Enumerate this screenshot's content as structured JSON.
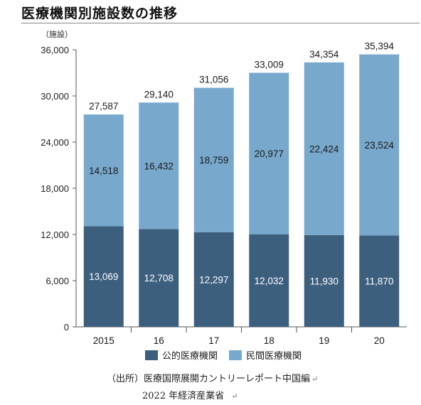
{
  "chart_data": {
    "type": "bar",
    "stacked": true,
    "title": "医療機関別施設数の推移",
    "unit_label": "（施設）",
    "categories": [
      "2015",
      "16",
      "17",
      "18",
      "19",
      "20"
    ],
    "series": [
      {
        "name": "公的医療機関",
        "color": "#3d5f7e",
        "values": [
          13069,
          12708,
          12297,
          12032,
          11930,
          11870
        ]
      },
      {
        "name": "民間医療機関",
        "color": "#78a9cc",
        "values": [
          14518,
          16432,
          18759,
          20977,
          22424,
          23524
        ]
      }
    ],
    "totals": [
      27587,
      29140,
      31056,
      33009,
      34354,
      35394
    ],
    "ylim": [
      0,
      36000
    ],
    "yticks": [
      0,
      6000,
      12000,
      18000,
      24000,
      30000,
      36000
    ],
    "legend_position": "bottom",
    "grid": false
  },
  "source": {
    "line1": "（出所）医療国際展開カントリーレポート中国編",
    "line2": "2022 年経済産業省",
    "return_mark": "↵"
  }
}
